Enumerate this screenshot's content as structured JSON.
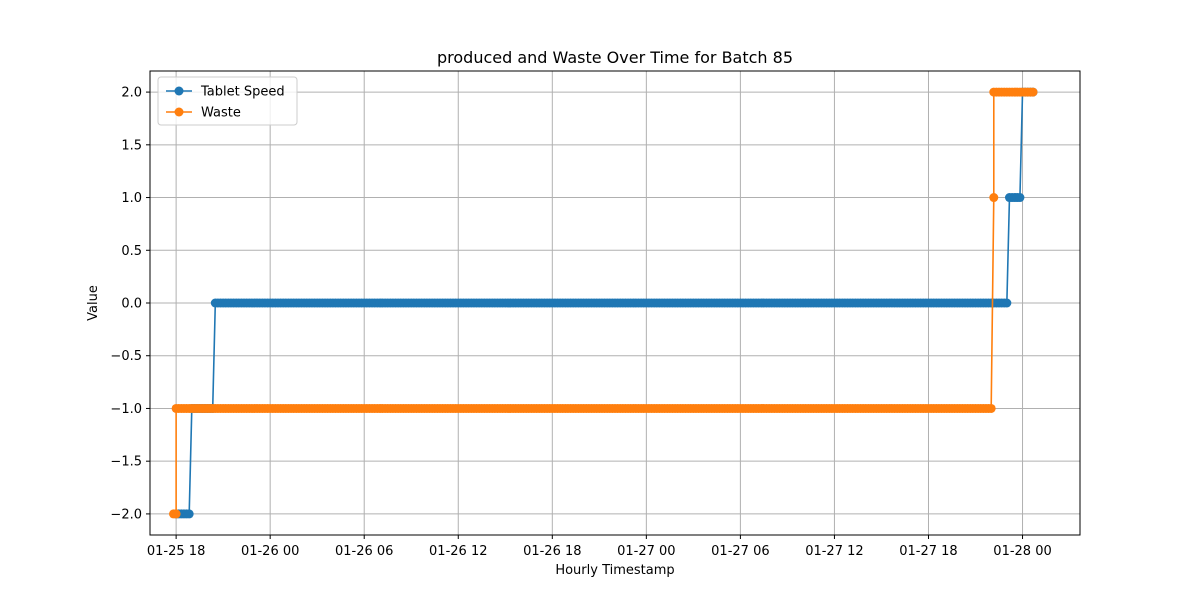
{
  "chart_data": {
    "type": "line",
    "title": "produced and Waste Over Time for Batch 85",
    "xlabel": "Hourly Timestamp",
    "ylabel": "Value",
    "x_axis": {
      "kind": "datetime",
      "range": [
        "2026-01-25T16:20",
        "2026-01-28T03:40"
      ],
      "ticks": [
        {
          "value": "2026-01-25T18:00",
          "label": "01-25 18"
        },
        {
          "value": "2026-01-26T00:00",
          "label": "01-26 00"
        },
        {
          "value": "2026-01-26T06:00",
          "label": "01-26 06"
        },
        {
          "value": "2026-01-26T12:00",
          "label": "01-26 12"
        },
        {
          "value": "2026-01-26T18:00",
          "label": "01-26 18"
        },
        {
          "value": "2026-01-27T00:00",
          "label": "01-27 00"
        },
        {
          "value": "2026-01-27T06:00",
          "label": "01-27 06"
        },
        {
          "value": "2026-01-27T12:00",
          "label": "01-27 12"
        },
        {
          "value": "2026-01-27T18:00",
          "label": "01-27 18"
        },
        {
          "value": "2026-01-28T00:00",
          "label": "01-28 00"
        }
      ]
    },
    "y_axis": {
      "range": [
        -2.2,
        2.2
      ],
      "ticks": [
        {
          "value": -2.0,
          "label": "−2.0"
        },
        {
          "value": -1.5,
          "label": "−1.5"
        },
        {
          "value": -1.0,
          "label": "−1.0"
        },
        {
          "value": -0.5,
          "label": "−0.5"
        },
        {
          "value": 0.0,
          "label": "0.0"
        },
        {
          "value": 0.5,
          "label": "0.5"
        },
        {
          "value": 1.0,
          "label": "1.0"
        },
        {
          "value": 1.5,
          "label": "1.5"
        },
        {
          "value": 2.0,
          "label": "2.0"
        }
      ]
    },
    "grid": true,
    "legend_position": "top-left",
    "series": [
      {
        "name": "Tablet Speed",
        "color": "#1f77b4",
        "marker": "circle",
        "segments": [
          {
            "start": "2026-01-25T18:00",
            "end": "2026-01-25T18:50",
            "value": -2
          },
          {
            "start": "2026-01-25T19:00",
            "end": "2026-01-25T20:20",
            "value": -1
          },
          {
            "start": "2026-01-25T20:30",
            "end": "2026-01-27T23:00",
            "value": 0
          },
          {
            "start": "2026-01-27T23:10",
            "end": "2026-01-27T23:50",
            "value": 1
          },
          {
            "start": "2026-01-28T00:00",
            "end": "2026-01-28T00:40",
            "value": 2
          }
        ]
      },
      {
        "name": "Waste",
        "color": "#ff7f0e",
        "marker": "circle",
        "segments": [
          {
            "start": "2026-01-25T17:50",
            "end": "2026-01-25T18:00",
            "value": -2
          },
          {
            "start": "2026-01-25T18:00",
            "end": "2026-01-27T22:00",
            "value": -1
          },
          {
            "start": "2026-01-27T22:10",
            "end": "2026-01-27T22:10",
            "value": 1
          },
          {
            "start": "2026-01-27T22:10",
            "end": "2026-01-28T00:40",
            "value": 2
          }
        ]
      }
    ]
  }
}
